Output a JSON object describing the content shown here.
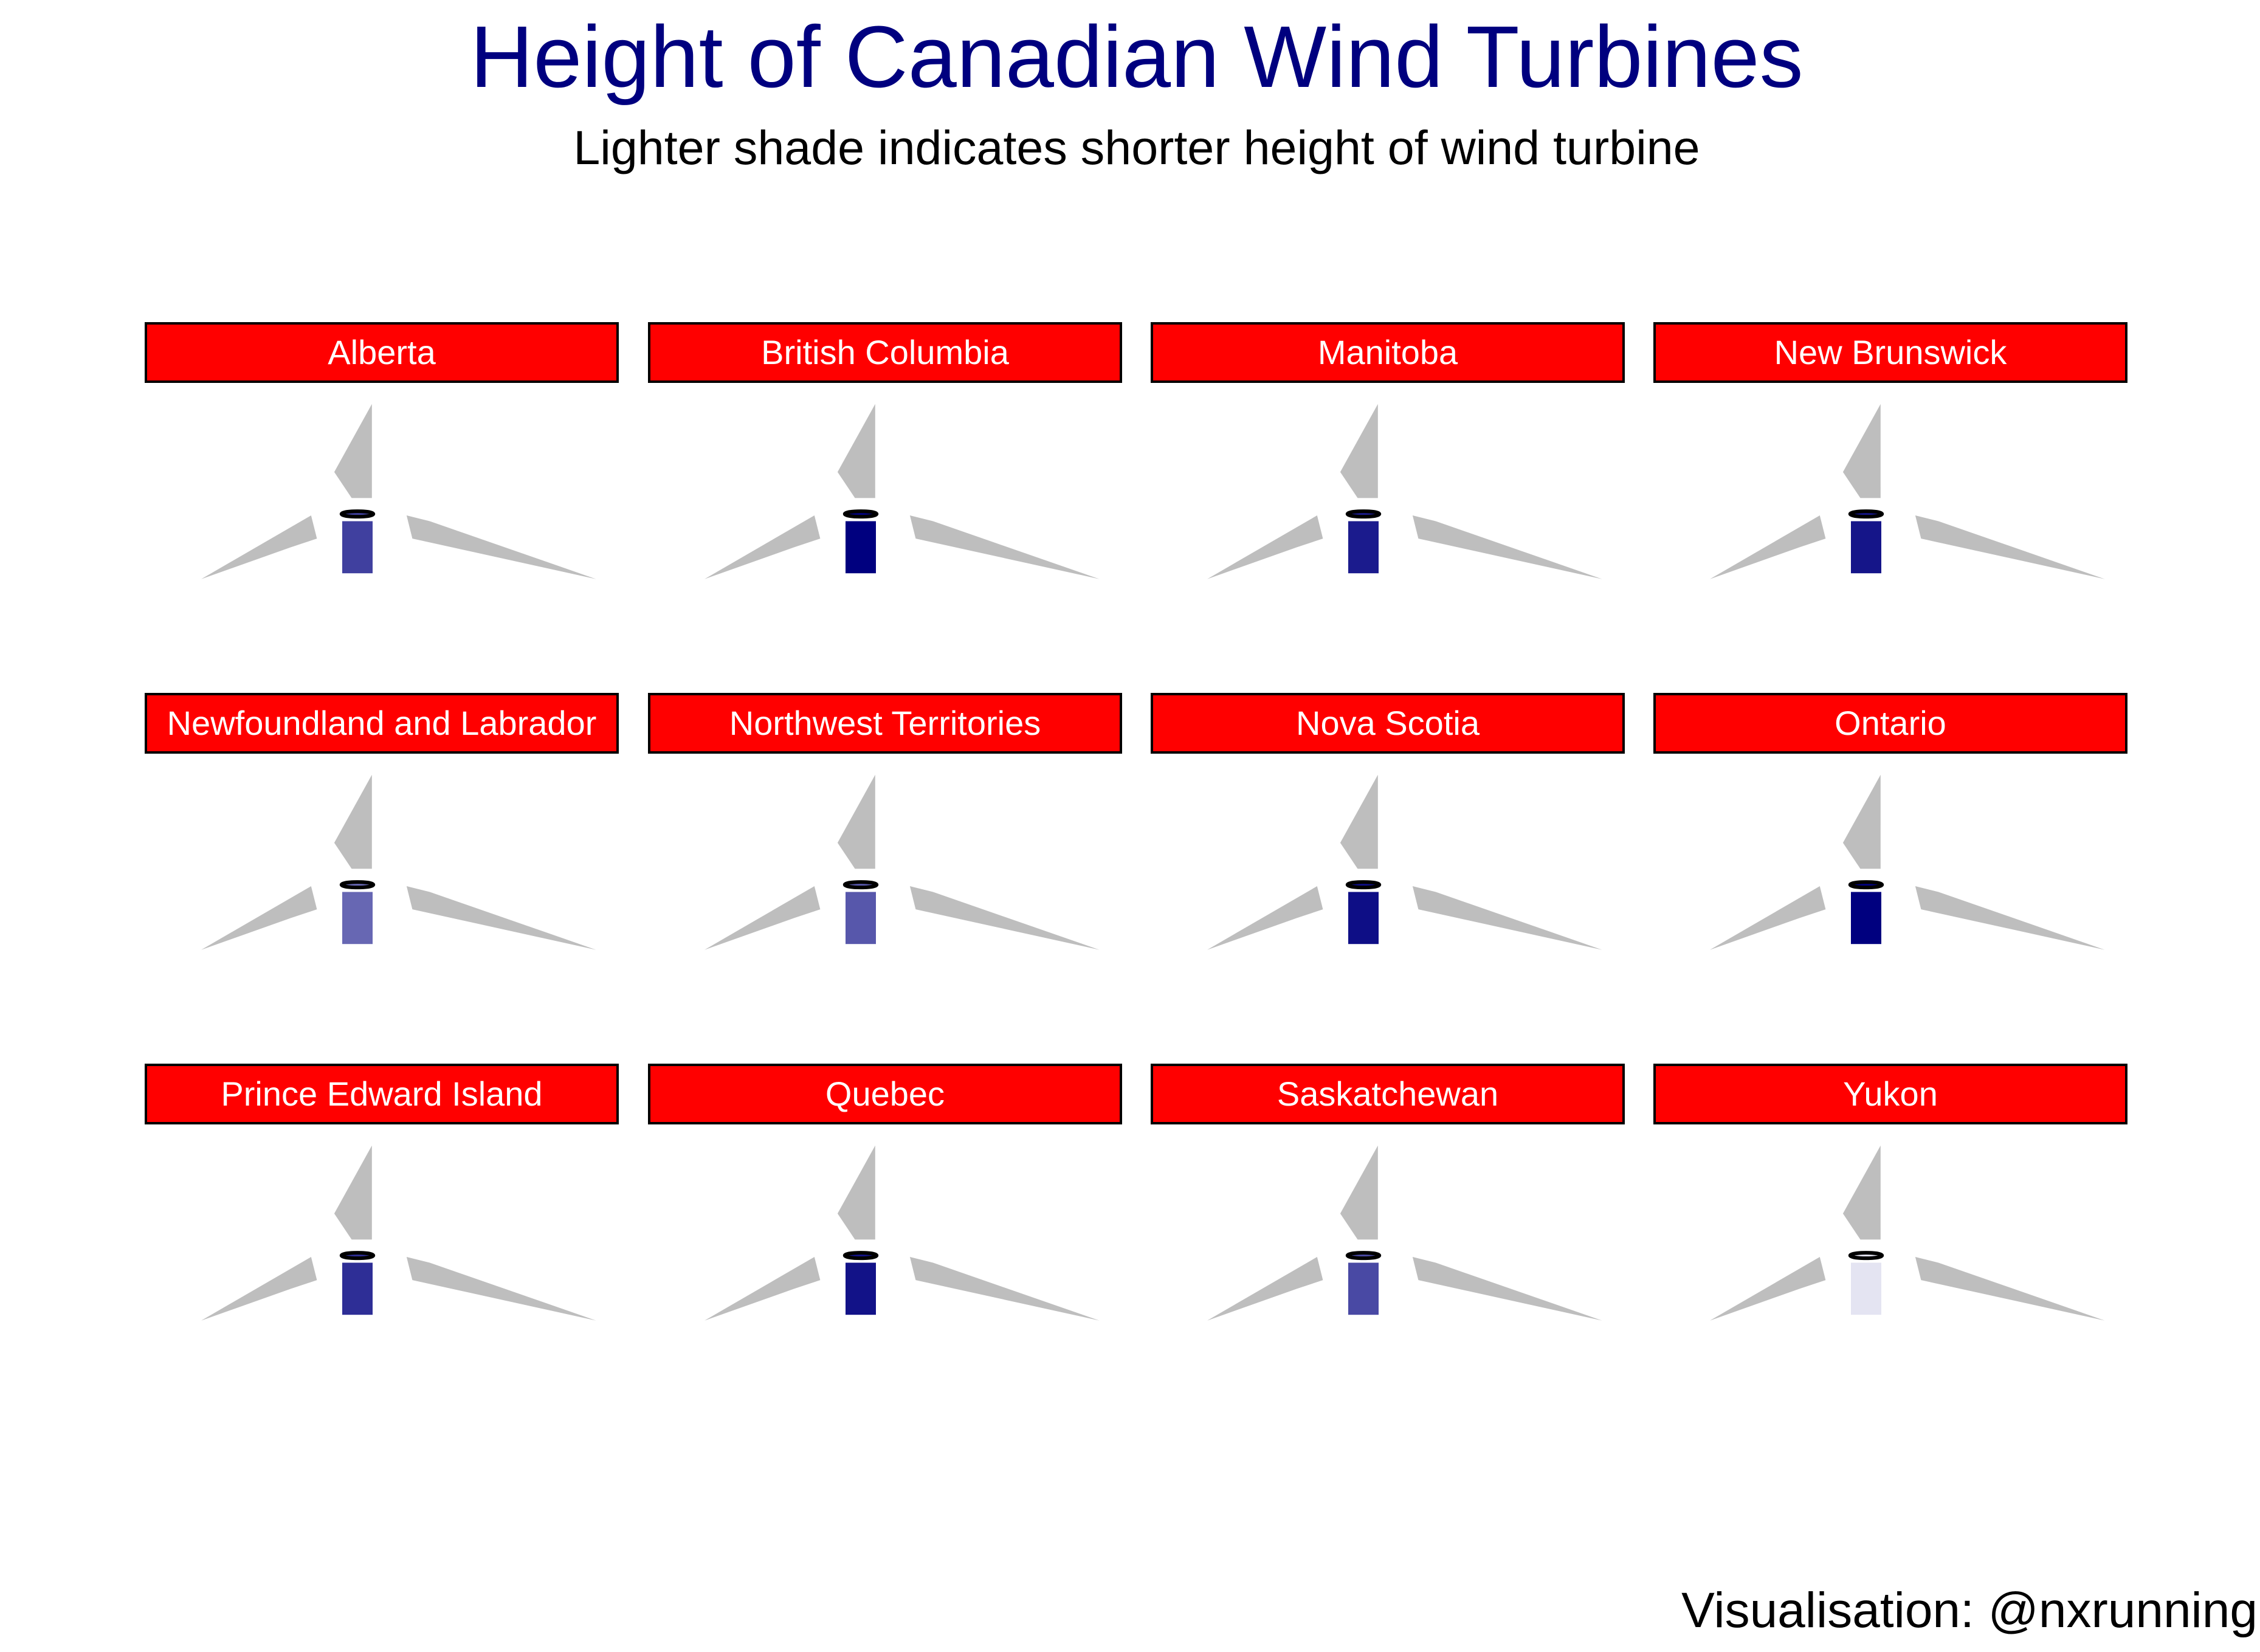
{
  "chart_data": {
    "type": "pictograph",
    "title": "Height of Canadian Wind Turbines",
    "subtitle": "Lighter shade indicates shorter height of wind turbine",
    "caption": "Visualisation: @nxrunning",
    "colors": {
      "strip_fill": "#ff0000",
      "strip_text": "#ffffff",
      "blade": "#bebebe",
      "title": "#00007f",
      "shade_light": "#e4e4f2",
      "shade_dark": "#00007f"
    },
    "panels": [
      {
        "province": "Alberta",
        "relative_height": 0.72
      },
      {
        "province": "British Columbia",
        "relative_height": 1.0
      },
      {
        "province": "Manitoba",
        "relative_height": 0.88
      },
      {
        "province": "New Brunswick",
        "relative_height": 0.91
      },
      {
        "province": "Newfoundland and Labrador",
        "relative_height": 0.55
      },
      {
        "province": "Northwest Territories",
        "relative_height": 0.62
      },
      {
        "province": "Nova Scotia",
        "relative_height": 0.94
      },
      {
        "province": "Ontario",
        "relative_height": 1.0
      },
      {
        "province": "Prince Edward Island",
        "relative_height": 0.8
      },
      {
        "province": "Quebec",
        "relative_height": 0.92
      },
      {
        "province": "Saskatchewan",
        "relative_height": 0.68
      },
      {
        "province": "Yukon",
        "relative_height": 0.0
      }
    ]
  }
}
